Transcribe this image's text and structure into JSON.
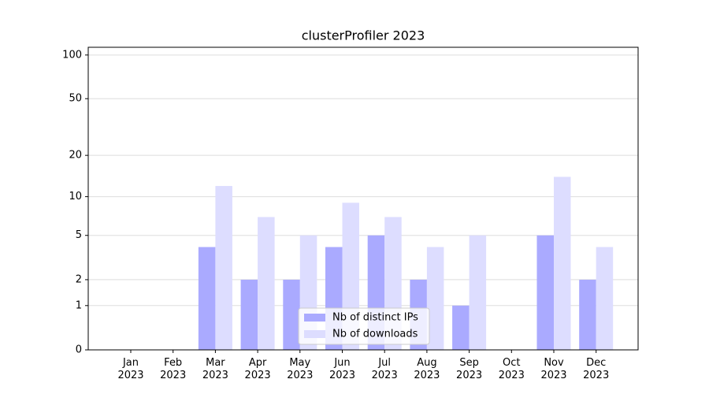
{
  "chart_data": {
    "type": "bar",
    "title": "clusterProfiler 2023",
    "categories": [
      "Jan\n2023",
      "Feb\n2023",
      "Mar\n2023",
      "Apr\n2023",
      "May\n2023",
      "Jun\n2023",
      "Jul\n2023",
      "Aug\n2023",
      "Sep\n2023",
      "Oct\n2023",
      "Nov\n2023",
      "Dec\n2023"
    ],
    "series": [
      {
        "name": "Nb of distinct IPs",
        "color": "#aaaaff",
        "values": [
          0,
          0,
          4,
          2,
          2,
          4,
          5,
          2,
          1,
          0,
          5,
          2
        ]
      },
      {
        "name": "Nb of downloads",
        "color": "#ddddff",
        "values": [
          0,
          0,
          12,
          7,
          5,
          9,
          7,
          4,
          5,
          0,
          14,
          4
        ]
      }
    ],
    "yscale": "log1p",
    "ylim": [
      0,
      113
    ],
    "yticks": [
      0,
      1,
      2,
      5,
      10,
      20,
      50,
      100
    ],
    "grid": true,
    "legend": "lower center"
  }
}
